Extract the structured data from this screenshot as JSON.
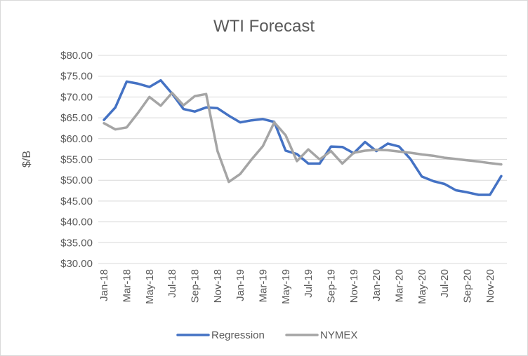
{
  "chart_data": {
    "type": "line",
    "title": "WTI Forecast",
    "xlabel": "",
    "ylabel": "$/B",
    "ylim": [
      30,
      80
    ],
    "ytick_step": 5,
    "ytick_prefix": "$",
    "ytick_decimals": 2,
    "grid": true,
    "legend_position": "bottom",
    "x": [
      "Jan-18",
      "Feb-18",
      "Mar-18",
      "Apr-18",
      "May-18",
      "Jun-18",
      "Jul-18",
      "Aug-18",
      "Sep-18",
      "Oct-18",
      "Nov-18",
      "Dec-18",
      "Jan-19",
      "Feb-19",
      "Mar-19",
      "Apr-19",
      "May-19",
      "Jun-19",
      "Jul-19",
      "Aug-19",
      "Sep-19",
      "Oct-19",
      "Nov-19",
      "Dec-19",
      "Jan-20",
      "Feb-20",
      "Mar-20",
      "Apr-20",
      "May-20",
      "Jun-20",
      "Jul-20",
      "Aug-20",
      "Sep-20",
      "Oct-20",
      "Nov-20",
      "Dec-20"
    ],
    "xtick_labels": [
      "Jan-18",
      "Mar-18",
      "May-18",
      "Jul-18",
      "Sep-18",
      "Nov-18",
      "Jan-19",
      "Mar-19",
      "May-19",
      "Jul-19",
      "Sep-19",
      "Nov-19",
      "Jan-20",
      "Mar-20",
      "May-20",
      "Jul-20",
      "Sep-20",
      "Nov-20"
    ],
    "series": [
      {
        "name": "Regression",
        "color": "#4472c4",
        "values": [
          64.5,
          67.5,
          73.7,
          73.2,
          72.4,
          74.0,
          70.8,
          67.1,
          66.5,
          67.5,
          67.3,
          65.5,
          63.9,
          64.4,
          64.7,
          64.0,
          57.1,
          56.3,
          54.0,
          54.0,
          58.1,
          58.0,
          56.5,
          59.2,
          57.0,
          58.8,
          58.1,
          55.1,
          50.9,
          49.8,
          49.1,
          47.6,
          47.1,
          46.5,
          46.5,
          51.0
        ]
      },
      {
        "name": "NYMEX",
        "color": "#a5a5a5",
        "values": [
          63.7,
          62.2,
          62.7,
          66.2,
          70.0,
          67.9,
          71.0,
          68.0,
          70.2,
          70.7,
          57.0,
          49.6,
          51.5,
          55.0,
          58.2,
          63.9,
          60.8,
          54.6,
          57.4,
          55.0,
          57.0,
          54.0,
          56.6,
          57.1,
          57.3,
          57.2,
          56.9,
          56.6,
          56.2,
          55.9,
          55.4,
          55.1,
          54.8,
          54.5,
          54.1,
          53.8
        ]
      }
    ]
  }
}
